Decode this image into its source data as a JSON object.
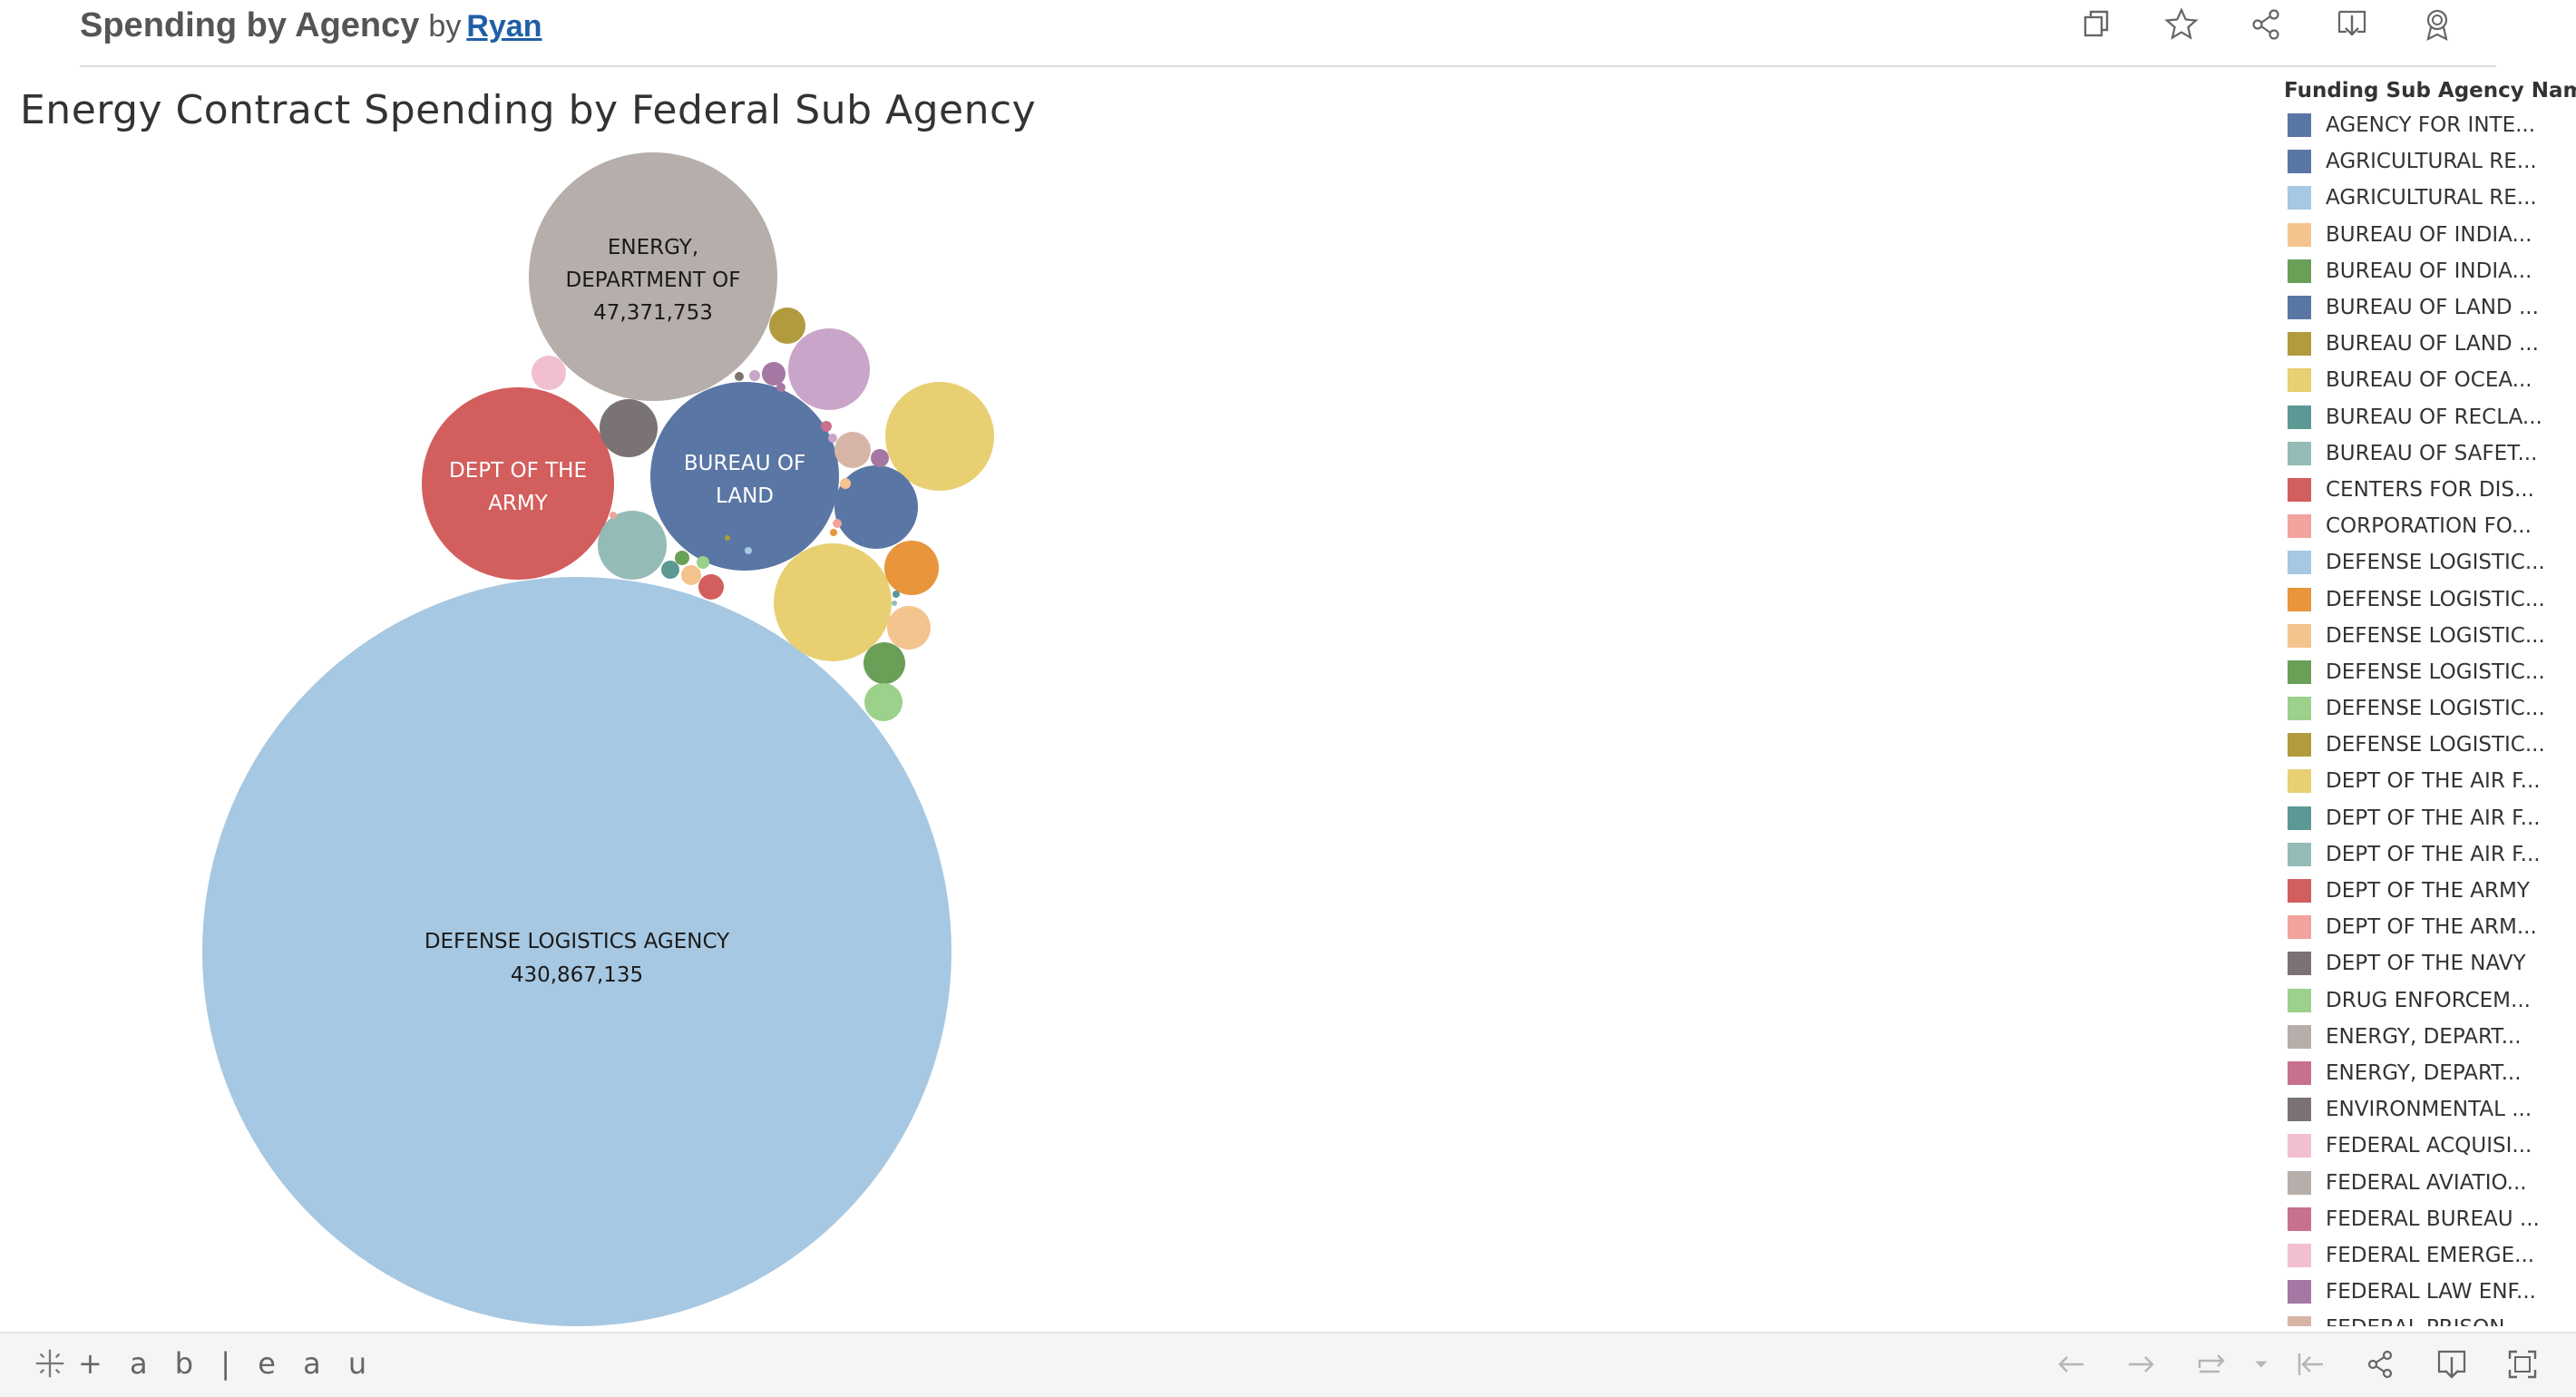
{
  "header": {
    "title": "Spending by Agency",
    "by_label": "by",
    "author": "Ryan",
    "toolbar": [
      {
        "name": "copy-icon"
      },
      {
        "name": "favorite-star-icon"
      },
      {
        "name": "share-icon"
      },
      {
        "name": "download-icon"
      },
      {
        "name": "award-icon"
      }
    ]
  },
  "chart_data": {
    "type": "packed-bubble",
    "title": "Energy Contract Spending by Federal Sub Agency",
    "legend_title": "Funding Sub Agency Name",
    "legend_placement": "right",
    "bubbles": [
      {
        "label": "DEFENSE LOGISTICS AGENCY",
        "value": 430867135,
        "value_label": "430,867,135",
        "color": "#a7c8e2"
      },
      {
        "label": "ENERGY, DEPARTMENT OF",
        "value": 47371753,
        "value_label": "47,371,753",
        "color": "#b6aeaa"
      },
      {
        "label": "BUREAU OF LAND",
        "color": "#5a76a4"
      },
      {
        "label": "DEPT OF THE ARMY",
        "color": "#d35e5e"
      }
    ]
  },
  "legend": {
    "items": [
      {
        "label": "AGENCY FOR INTE...",
        "color": "#5a76a4"
      },
      {
        "label": "AGRICULTURAL RE...",
        "color": "#5a76a4"
      },
      {
        "label": "AGRICULTURAL RE...",
        "color": "#a7c8e2"
      },
      {
        "label": "BUREAU OF INDIA...",
        "color": "#f4c48e"
      },
      {
        "label": "BUREAU OF INDIA...",
        "color": "#6a9f58"
      },
      {
        "label": "BUREAU OF LAND ...",
        "color": "#5a76a4"
      },
      {
        "label": "BUREAU OF LAND ...",
        "color": "#b19b3e"
      },
      {
        "label": "BUREAU OF OCEA...",
        "color": "#e8cf72"
      },
      {
        "label": "BUREAU OF RECLA...",
        "color": "#5c9995"
      },
      {
        "label": "BUREAU OF SAFET...",
        "color": "#94bbb5"
      },
      {
        "label": "CENTERS FOR DIS...",
        "color": "#d35e5e"
      },
      {
        "label": "CORPORATION FO...",
        "color": "#f2a39d"
      },
      {
        "label": "DEFENSE LOGISTIC...",
        "color": "#a7c8e2"
      },
      {
        "label": "DEFENSE LOGISTIC...",
        "color": "#e8953c"
      },
      {
        "label": "DEFENSE LOGISTIC...",
        "color": "#f4c48e"
      },
      {
        "label": "DEFENSE LOGISTIC...",
        "color": "#6a9f58"
      },
      {
        "label": "DEFENSE LOGISTIC...",
        "color": "#9bd18a"
      },
      {
        "label": "DEFENSE LOGISTIC...",
        "color": "#b19b3e"
      },
      {
        "label": "DEPT OF THE AIR F...",
        "color": "#e8cf72"
      },
      {
        "label": "DEPT OF THE AIR F...",
        "color": "#5c9995"
      },
      {
        "label": "DEPT OF THE AIR F...",
        "color": "#94bbb5"
      },
      {
        "label": "DEPT OF THE ARMY",
        "color": "#d35e5e"
      },
      {
        "label": "DEPT OF THE ARM...",
        "color": "#f2a39d"
      },
      {
        "label": "DEPT OF THE NAVY",
        "color": "#7b7373"
      },
      {
        "label": "DRUG ENFORCEM...",
        "color": "#9bd18a"
      },
      {
        "label": "ENERGY, DEPART...",
        "color": "#b6aeaa"
      },
      {
        "label": "ENERGY, DEPART...",
        "color": "#c8708f"
      },
      {
        "label": "ENVIRONMENTAL ...",
        "color": "#7b7373"
      },
      {
        "label": "FEDERAL ACQUISI...",
        "color": "#f2bfd0"
      },
      {
        "label": "FEDERAL AVIATIO...",
        "color": "#b6aeaa"
      },
      {
        "label": "FEDERAL BUREAU ...",
        "color": "#c8708f"
      },
      {
        "label": "FEDERAL EMERGE...",
        "color": "#f2bfd0"
      },
      {
        "label": "FEDERAL LAW ENF...",
        "color": "#a478a2"
      },
      {
        "label": "FEDERAL PRISON ...",
        "color": "#d7b5a6"
      }
    ]
  },
  "footer": {
    "brand": "+ a b | e a u",
    "controls": [
      {
        "name": "undo-icon"
      },
      {
        "name": "redo-icon"
      },
      {
        "name": "revert-icon"
      },
      {
        "name": "revert-dropdown-icon"
      },
      {
        "name": "reset-to-start-icon"
      },
      {
        "name": "share-icon"
      },
      {
        "name": "download-icon"
      },
      {
        "name": "fullscreen-icon"
      }
    ]
  }
}
